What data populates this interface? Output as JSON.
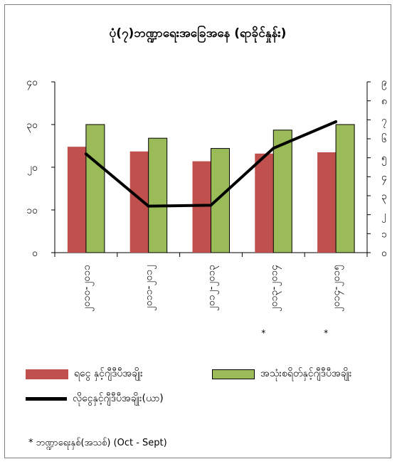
{
  "title": "ပုံ(၇)ဘဏ္ဍာရေးအခြေအနေ (ရာခိုင်နှုန်း)",
  "colors": {
    "series1": "#c0504d",
    "series2": "#9bbb59",
    "line": "#000000",
    "axis": "#000000"
  },
  "chart_data": {
    "type": "bar",
    "categories": [
      "၂၀၁၀-၂၀၁၁",
      "၂၀၁၁-၂၀၁၂",
      "၂၀၁၂-၂၀၁၃",
      "၂၀၁၃-၂၀၁၄",
      "၂၀၁၄-၂၀၁၅"
    ],
    "category_marks": [
      "",
      "",
      "",
      "*",
      "*"
    ],
    "y_left": {
      "ticks": [
        "၀",
        "၁၀",
        "၂၀",
        "၃၀",
        "၄၀"
      ],
      "range": [
        0,
        40
      ]
    },
    "y_right": {
      "ticks": [
        "၀",
        "၁",
        "၂",
        "၃",
        "၄",
        "၅",
        "၆",
        "၇",
        "၈",
        "၉"
      ],
      "range": [
        0,
        9
      ]
    },
    "series": [
      {
        "name": "ရငွေ နှင့်ဂျီဒီပီအချိုး",
        "type": "bar",
        "axis": "left",
        "values": [
          24.8,
          23.7,
          21.4,
          23.2,
          23.5
        ]
      },
      {
        "name": "အသုံးစရိတ်နှင့်ဂျီဒီပီအချိုး",
        "type": "bar",
        "axis": "left",
        "values": [
          30.0,
          26.8,
          24.4,
          28.7,
          30.0
        ]
      },
      {
        "name": "လိုငွေနှင့်ဂျီဒီပီအချိုး(ယာ)",
        "type": "line",
        "axis": "right",
        "values": [
          5.2,
          2.45,
          2.5,
          5.5,
          6.9
        ]
      }
    ]
  },
  "legend": {
    "series1_label": "ရငွေ နှင့်ဂျီဒီပီအချိုး",
    "series2_label": "အသုံးစရိတ်နှင့်ဂျီဒီပီအချိုး",
    "line_label": "လိုငွေနှင့်ဂျီဒီပီအချိုး(ယာ)"
  },
  "footnote": "*  ဘဏ္ဍာရေးနှစ်(အသစ်)  (Oct - Sept)"
}
